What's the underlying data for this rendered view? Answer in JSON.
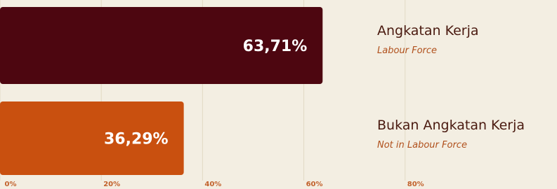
{
  "chart_data": {
    "type": "hbar",
    "categories": [
      "Angkatan Kerja",
      "Bukan Angkatan Kerja"
    ],
    "category_subtitles": [
      "Labour Force",
      "Not in Labour Force"
    ],
    "values": [
      63.71,
      36.29
    ],
    "value_labels": [
      "63,71%",
      "36,29%"
    ],
    "colors": [
      "#4d0610",
      "#c9500f"
    ],
    "xlim": [
      0,
      110
    ],
    "xticks": [
      {
        "value": 0,
        "label": "0%"
      },
      {
        "value": 20,
        "label": "20%"
      },
      {
        "value": 40,
        "label": "40%"
      },
      {
        "value": 60,
        "label": "60%"
      },
      {
        "value": 80,
        "label": "80%"
      }
    ],
    "grid": true
  }
}
